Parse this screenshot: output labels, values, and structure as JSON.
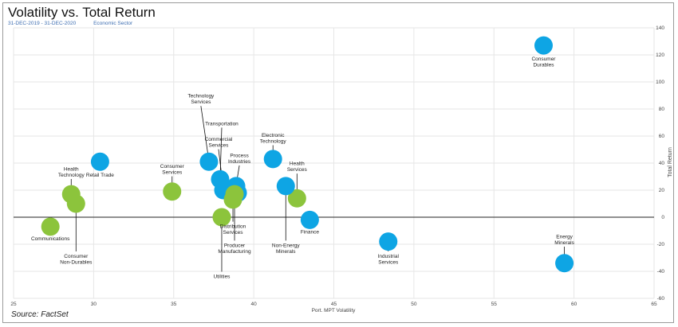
{
  "header": {
    "title": "Volatility vs. Total Return",
    "date_range": "31-DEC-2019 - 31-DEC-2020",
    "grouping": "Economic Sector"
  },
  "footer": {
    "source": "Source: FactSet"
  },
  "colors": {
    "blue_point": "#0ea5e4",
    "green_point": "#8cc43c",
    "grid": "#e6e6e6",
    "zero_line": "#222222",
    "tick_text": "#444444"
  },
  "chart_data": {
    "type": "scatter",
    "title": "Volatility vs. Total Return",
    "xlabel": "Port. MPT Volatility",
    "ylabel": "Total Return",
    "xlim": [
      25,
      65
    ],
    "ylim": [
      -60,
      140
    ],
    "xticks": [
      25,
      30,
      35,
      40,
      45,
      50,
      55,
      60,
      65
    ],
    "yticks": [
      -60,
      -40,
      -20,
      0,
      20,
      40,
      60,
      80,
      100,
      120,
      140
    ],
    "grid": true,
    "points": [
      {
        "label": "Consumer\nDurables",
        "x": 58.1,
        "y": 127,
        "color": "blue",
        "lx": 58.1,
        "ly": 116
      },
      {
        "label": "Technology\nServices",
        "x": 37.2,
        "y": 41,
        "color": "blue",
        "lx": 36.7,
        "ly": 84
      },
      {
        "label": "Transportation",
        "x": 37.9,
        "y": 28,
        "color": "blue",
        "lx": 38.0,
        "ly": 68
      },
      {
        "label": "Commercial\nServices",
        "x": 38.1,
        "y": 20,
        "color": "blue",
        "lx": 37.8,
        "ly": 52
      },
      {
        "label": "Process\nIndustries",
        "x": 38.9,
        "y": 23,
        "color": "blue",
        "lx": 39.1,
        "ly": 40
      },
      {
        "label": "",
        "x": 39.0,
        "y": 18,
        "color": "blue",
        "lx": null,
        "ly": null
      },
      {
        "label": "Electronic\nTechnology",
        "x": 41.2,
        "y": 43,
        "color": "blue",
        "lx": 41.2,
        "ly": 55
      },
      {
        "label": "Health\nServices",
        "x": 42.7,
        "y": 14,
        "color": "green",
        "lx": 42.7,
        "ly": 34
      },
      {
        "label": "Non-Energy\nMinerals",
        "x": 42.0,
        "y": 23,
        "color": "blue",
        "lx": 42.0,
        "ly": -22
      },
      {
        "label": "Finance",
        "x": 43.5,
        "y": -2,
        "color": "blue",
        "lx": 43.5,
        "ly": -12
      },
      {
        "label": "Industrial\nServices",
        "x": 48.4,
        "y": -18,
        "color": "blue",
        "lx": 48.4,
        "ly": -30
      },
      {
        "label": "Energy\nMinerals",
        "x": 59.4,
        "y": -34,
        "color": "blue",
        "lx": 59.4,
        "ly": -20
      },
      {
        "label": "Retail Trade",
        "x": 30.4,
        "y": 41,
        "color": "blue",
        "lx": 30.4,
        "ly": 30
      },
      {
        "label": "Consumer\nServices",
        "x": 34.9,
        "y": 19,
        "color": "green",
        "lx": 34.9,
        "ly": 32
      },
      {
        "label": "Health\nTechnology",
        "x": 28.6,
        "y": 17,
        "color": "green",
        "lx": 28.6,
        "ly": 30
      },
      {
        "label": "Consumer\nNon-Durables",
        "x": 28.9,
        "y": 10,
        "color": "green",
        "lx": 28.9,
        "ly": -30
      },
      {
        "label": "Communications",
        "x": 27.3,
        "y": -7,
        "color": "green",
        "lx": 27.3,
        "ly": -17
      },
      {
        "label": "Utilities",
        "x": 38.0,
        "y": 0,
        "color": "green",
        "lx": 38.0,
        "ly": -45
      },
      {
        "label": "Distribution\nServices",
        "x": 38.7,
        "y": 13,
        "color": "green",
        "lx": 38.7,
        "ly": -8
      },
      {
        "label": "Producer\nManufacturing",
        "x": 38.8,
        "y": 17,
        "color": "green",
        "lx": 38.8,
        "ly": -22
      }
    ]
  }
}
